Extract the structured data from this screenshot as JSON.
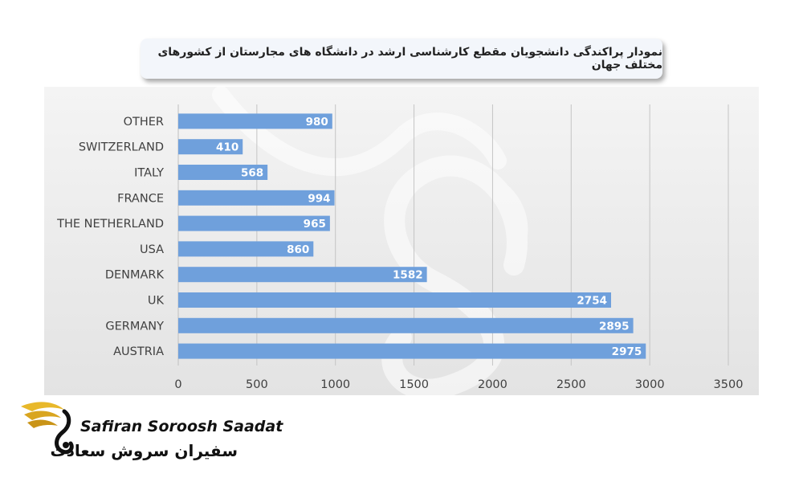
{
  "chart_data": {
    "type": "bar",
    "orientation": "horizontal",
    "title": "نمودار پراکندگی دانشجویان مقطع کارشناسی ارشد در دانشگاه های مجارستان از کشورهای مختلف جهان",
    "categories": [
      "OTHER",
      "SWITZERLAND",
      "ITALY",
      "FRANCE",
      "THE NETHERLAND",
      "USA",
      "DENMARK",
      "UK",
      "GERMANY",
      "AUSTRIA"
    ],
    "values": [
      980,
      410,
      568,
      994,
      965,
      860,
      1582,
      2754,
      2895,
      2975
    ],
    "xlim": [
      0,
      3500
    ],
    "xticks": [
      "0",
      "500",
      "1000",
      "1500",
      "2000",
      "2500",
      "3000",
      "3500"
    ],
    "xlabel": "",
    "ylabel": "",
    "grid": "vertical",
    "data_labels": "inside-end",
    "bar_color": "#6fa0dc"
  },
  "logo": {
    "name_en": "Safiran Soroosh Saadat",
    "name_fa": "سفیران سروش سعادت",
    "icon": "golden-wing-swan-icon"
  }
}
